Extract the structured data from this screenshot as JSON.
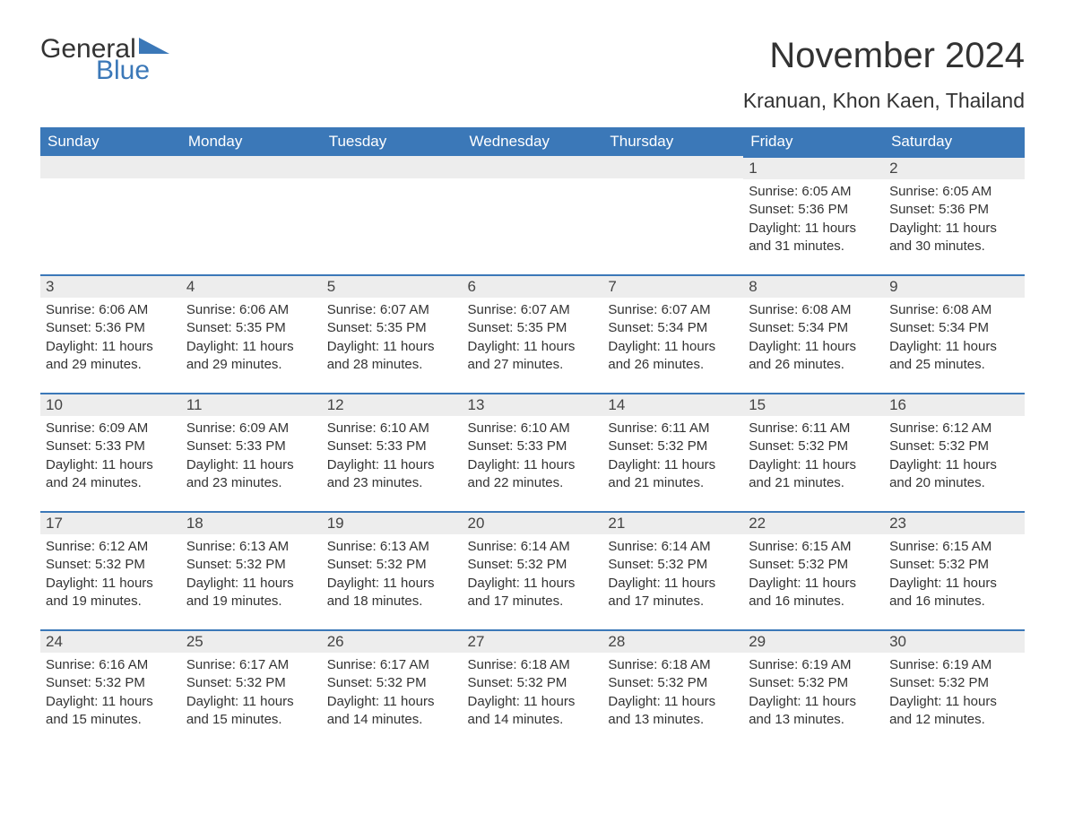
{
  "logo": {
    "text1": "General",
    "text2": "Blue",
    "flag_color": "#3b78b8"
  },
  "title": "November 2024",
  "location": "Kranuan, Khon Kaen, Thailand",
  "colors": {
    "header_bg": "#3b78b8",
    "header_text": "#ffffff",
    "daybar_bg": "#ededed",
    "daybar_border": "#3b78b8",
    "body_text": "#333333"
  },
  "day_headers": [
    "Sunday",
    "Monday",
    "Tuesday",
    "Wednesday",
    "Thursday",
    "Friday",
    "Saturday"
  ],
  "weeks": [
    [
      null,
      null,
      null,
      null,
      null,
      {
        "n": "1",
        "sr": "6:05 AM",
        "ss": "5:36 PM",
        "dl": "11 hours and 31 minutes."
      },
      {
        "n": "2",
        "sr": "6:05 AM",
        "ss": "5:36 PM",
        "dl": "11 hours and 30 minutes."
      }
    ],
    [
      {
        "n": "3",
        "sr": "6:06 AM",
        "ss": "5:36 PM",
        "dl": "11 hours and 29 minutes."
      },
      {
        "n": "4",
        "sr": "6:06 AM",
        "ss": "5:35 PM",
        "dl": "11 hours and 29 minutes."
      },
      {
        "n": "5",
        "sr": "6:07 AM",
        "ss": "5:35 PM",
        "dl": "11 hours and 28 minutes."
      },
      {
        "n": "6",
        "sr": "6:07 AM",
        "ss": "5:35 PM",
        "dl": "11 hours and 27 minutes."
      },
      {
        "n": "7",
        "sr": "6:07 AM",
        "ss": "5:34 PM",
        "dl": "11 hours and 26 minutes."
      },
      {
        "n": "8",
        "sr": "6:08 AM",
        "ss": "5:34 PM",
        "dl": "11 hours and 26 minutes."
      },
      {
        "n": "9",
        "sr": "6:08 AM",
        "ss": "5:34 PM",
        "dl": "11 hours and 25 minutes."
      }
    ],
    [
      {
        "n": "10",
        "sr": "6:09 AM",
        "ss": "5:33 PM",
        "dl": "11 hours and 24 minutes."
      },
      {
        "n": "11",
        "sr": "6:09 AM",
        "ss": "5:33 PM",
        "dl": "11 hours and 23 minutes."
      },
      {
        "n": "12",
        "sr": "6:10 AM",
        "ss": "5:33 PM",
        "dl": "11 hours and 23 minutes."
      },
      {
        "n": "13",
        "sr": "6:10 AM",
        "ss": "5:33 PM",
        "dl": "11 hours and 22 minutes."
      },
      {
        "n": "14",
        "sr": "6:11 AM",
        "ss": "5:32 PM",
        "dl": "11 hours and 21 minutes."
      },
      {
        "n": "15",
        "sr": "6:11 AM",
        "ss": "5:32 PM",
        "dl": "11 hours and 21 minutes."
      },
      {
        "n": "16",
        "sr": "6:12 AM",
        "ss": "5:32 PM",
        "dl": "11 hours and 20 minutes."
      }
    ],
    [
      {
        "n": "17",
        "sr": "6:12 AM",
        "ss": "5:32 PM",
        "dl": "11 hours and 19 minutes."
      },
      {
        "n": "18",
        "sr": "6:13 AM",
        "ss": "5:32 PM",
        "dl": "11 hours and 19 minutes."
      },
      {
        "n": "19",
        "sr": "6:13 AM",
        "ss": "5:32 PM",
        "dl": "11 hours and 18 minutes."
      },
      {
        "n": "20",
        "sr": "6:14 AM",
        "ss": "5:32 PM",
        "dl": "11 hours and 17 minutes."
      },
      {
        "n": "21",
        "sr": "6:14 AM",
        "ss": "5:32 PM",
        "dl": "11 hours and 17 minutes."
      },
      {
        "n": "22",
        "sr": "6:15 AM",
        "ss": "5:32 PM",
        "dl": "11 hours and 16 minutes."
      },
      {
        "n": "23",
        "sr": "6:15 AM",
        "ss": "5:32 PM",
        "dl": "11 hours and 16 minutes."
      }
    ],
    [
      {
        "n": "24",
        "sr": "6:16 AM",
        "ss": "5:32 PM",
        "dl": "11 hours and 15 minutes."
      },
      {
        "n": "25",
        "sr": "6:17 AM",
        "ss": "5:32 PM",
        "dl": "11 hours and 15 minutes."
      },
      {
        "n": "26",
        "sr": "6:17 AM",
        "ss": "5:32 PM",
        "dl": "11 hours and 14 minutes."
      },
      {
        "n": "27",
        "sr": "6:18 AM",
        "ss": "5:32 PM",
        "dl": "11 hours and 14 minutes."
      },
      {
        "n": "28",
        "sr": "6:18 AM",
        "ss": "5:32 PM",
        "dl": "11 hours and 13 minutes."
      },
      {
        "n": "29",
        "sr": "6:19 AM",
        "ss": "5:32 PM",
        "dl": "11 hours and 13 minutes."
      },
      {
        "n": "30",
        "sr": "6:19 AM",
        "ss": "5:32 PM",
        "dl": "11 hours and 12 minutes."
      }
    ]
  ],
  "labels": {
    "sunrise": "Sunrise:",
    "sunset": "Sunset:",
    "daylight": "Daylight:"
  }
}
